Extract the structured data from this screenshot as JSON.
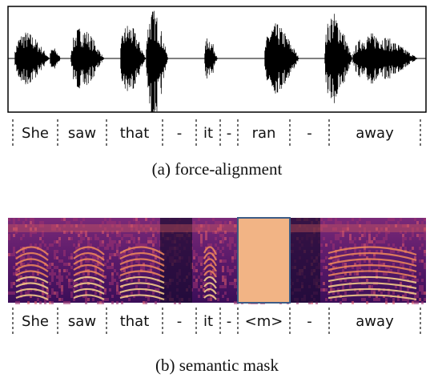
{
  "panels": [
    {
      "words": [
        "She",
        "saw",
        "that",
        "-",
        "it",
        "-",
        "ran",
        "-",
        "away"
      ],
      "caption": "(a) force-alignment"
    },
    {
      "words": [
        "She",
        "saw",
        "that",
        "-",
        "it",
        "-",
        "<m>",
        "-",
        "away"
      ],
      "caption": "(b) semantic mask"
    }
  ]
}
